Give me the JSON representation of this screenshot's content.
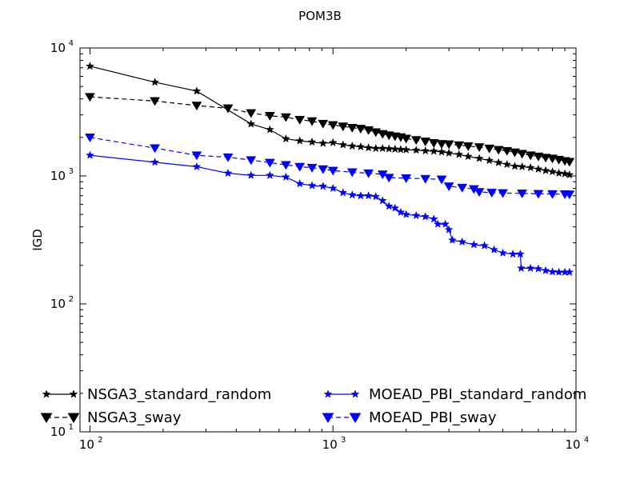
{
  "chart_data": {
    "type": "line",
    "title": "POM3B",
    "xlabel": "",
    "ylabel": "IGD",
    "xscale": "log",
    "yscale": "log",
    "xlim": [
      91,
      10000
    ],
    "ylim": [
      10,
      10000
    ],
    "grid": false,
    "legend_position": "lower-left",
    "x_ticks": [
      {
        "value": 100,
        "base": "10",
        "exp": "2"
      },
      {
        "value": 1000,
        "base": "10",
        "exp": "3"
      },
      {
        "value": 10000,
        "base": "10",
        "exp": "4"
      }
    ],
    "y_ticks": [
      {
        "value": 10,
        "base": "10",
        "exp": "1"
      },
      {
        "value": 100,
        "base": "10",
        "exp": "2"
      },
      {
        "value": 1000,
        "base": "10",
        "exp": "3"
      },
      {
        "value": 10000,
        "base": "10",
        "exp": "4"
      }
    ],
    "series": [
      {
        "name": "NSGA3_standard_random",
        "color": "#000000",
        "dash": "solid",
        "marker": "star",
        "points": [
          [
            100,
            7200
          ],
          [
            185,
            5400
          ],
          [
            275,
            4600
          ],
          [
            460,
            2550
          ],
          [
            550,
            2300
          ],
          [
            640,
            1950
          ],
          [
            730,
            1880
          ],
          [
            820,
            1840
          ],
          [
            910,
            1800
          ],
          [
            1000,
            1820
          ],
          [
            1100,
            1750
          ],
          [
            1200,
            1710
          ],
          [
            1300,
            1690
          ],
          [
            1400,
            1660
          ],
          [
            1500,
            1640
          ],
          [
            1600,
            1640
          ],
          [
            1700,
            1630
          ],
          [
            1800,
            1620
          ],
          [
            1900,
            1610
          ],
          [
            2000,
            1600
          ],
          [
            2200,
            1590
          ],
          [
            2400,
            1570
          ],
          [
            2600,
            1560
          ],
          [
            2800,
            1540
          ],
          [
            3000,
            1510
          ],
          [
            3300,
            1470
          ],
          [
            3600,
            1420
          ],
          [
            4000,
            1370
          ],
          [
            4400,
            1320
          ],
          [
            4800,
            1270
          ],
          [
            5200,
            1230
          ],
          [
            5600,
            1190
          ],
          [
            6000,
            1180
          ],
          [
            6500,
            1160
          ],
          [
            7000,
            1130
          ],
          [
            7500,
            1100
          ],
          [
            8000,
            1080
          ],
          [
            8500,
            1050
          ],
          [
            9000,
            1040
          ],
          [
            9400,
            1020
          ]
        ]
      },
      {
        "name": "NSGA3_sway",
        "color": "#000000",
        "dash": "dashed",
        "marker": "triangle-down",
        "points": [
          [
            100,
            4150
          ],
          [
            185,
            3850
          ],
          [
            275,
            3550
          ],
          [
            370,
            3380
          ],
          [
            460,
            3100
          ],
          [
            550,
            2950
          ],
          [
            640,
            2880
          ],
          [
            730,
            2750
          ],
          [
            820,
            2680
          ],
          [
            910,
            2560
          ],
          [
            1000,
            2500
          ],
          [
            1100,
            2440
          ],
          [
            1200,
            2380
          ],
          [
            1300,
            2340
          ],
          [
            1400,
            2280
          ],
          [
            1500,
            2200
          ],
          [
            1600,
            2130
          ],
          [
            1700,
            2080
          ],
          [
            1800,
            2040
          ],
          [
            1900,
            2010
          ],
          [
            2000,
            1960
          ],
          [
            2200,
            1910
          ],
          [
            2400,
            1860
          ],
          [
            2600,
            1810
          ],
          [
            2800,
            1780
          ],
          [
            3000,
            1770
          ],
          [
            3300,
            1740
          ],
          [
            3600,
            1710
          ],
          [
            4000,
            1680
          ],
          [
            4400,
            1640
          ],
          [
            4800,
            1600
          ],
          [
            5200,
            1570
          ],
          [
            5600,
            1530
          ],
          [
            6000,
            1490
          ],
          [
            6500,
            1450
          ],
          [
            7000,
            1420
          ],
          [
            7500,
            1390
          ],
          [
            8000,
            1370
          ],
          [
            8500,
            1340
          ],
          [
            9000,
            1310
          ],
          [
            9400,
            1290
          ]
        ]
      },
      {
        "name": "MOEAD_PBI_standard_random",
        "color": "#0000ff",
        "dash": "solid",
        "marker": "star",
        "points": [
          [
            100,
            1450
          ],
          [
            185,
            1280
          ],
          [
            275,
            1180
          ],
          [
            370,
            1050
          ],
          [
            460,
            1010
          ],
          [
            550,
            1010
          ],
          [
            640,
            980
          ],
          [
            730,
            870
          ],
          [
            820,
            840
          ],
          [
            910,
            830
          ],
          [
            1000,
            800
          ],
          [
            1100,
            740
          ],
          [
            1200,
            710
          ],
          [
            1300,
            700
          ],
          [
            1400,
            700
          ],
          [
            1500,
            690
          ],
          [
            1600,
            640
          ],
          [
            1700,
            580
          ],
          [
            1800,
            560
          ],
          [
            1900,
            520
          ],
          [
            2000,
            500
          ],
          [
            2200,
            490
          ],
          [
            2400,
            480
          ],
          [
            2600,
            460
          ],
          [
            2700,
            420
          ],
          [
            2900,
            420
          ],
          [
            3000,
            380
          ],
          [
            3100,
            315
          ],
          [
            3400,
            305
          ],
          [
            3800,
            290
          ],
          [
            4200,
            285
          ],
          [
            4600,
            265
          ],
          [
            5000,
            250
          ],
          [
            5500,
            245
          ],
          [
            5900,
            245
          ],
          [
            5950,
            190
          ],
          [
            6500,
            190
          ],
          [
            7000,
            188
          ],
          [
            7500,
            182
          ],
          [
            8000,
            178
          ],
          [
            8500,
            177
          ],
          [
            9000,
            177
          ],
          [
            9400,
            177
          ]
        ]
      },
      {
        "name": "MOEAD_PBI_sway",
        "color": "#0000ff",
        "dash": "dashed",
        "marker": "triangle-down",
        "points": [
          [
            100,
            2000
          ],
          [
            185,
            1650
          ],
          [
            275,
            1450
          ],
          [
            370,
            1400
          ],
          [
            460,
            1330
          ],
          [
            550,
            1270
          ],
          [
            640,
            1220
          ],
          [
            730,
            1180
          ],
          [
            820,
            1160
          ],
          [
            910,
            1130
          ],
          [
            1000,
            1100
          ],
          [
            1200,
            1070
          ],
          [
            1400,
            1050
          ],
          [
            1600,
            1030
          ],
          [
            1700,
            970
          ],
          [
            2000,
            960
          ],
          [
            2400,
            950
          ],
          [
            2800,
            940
          ],
          [
            3000,
            830
          ],
          [
            3400,
            810
          ],
          [
            3800,
            790
          ],
          [
            4000,
            750
          ],
          [
            4500,
            740
          ],
          [
            5000,
            735
          ],
          [
            6000,
            730
          ],
          [
            7000,
            725
          ],
          [
            8000,
            722
          ],
          [
            9000,
            720
          ],
          [
            9400,
            718
          ]
        ]
      }
    ]
  }
}
